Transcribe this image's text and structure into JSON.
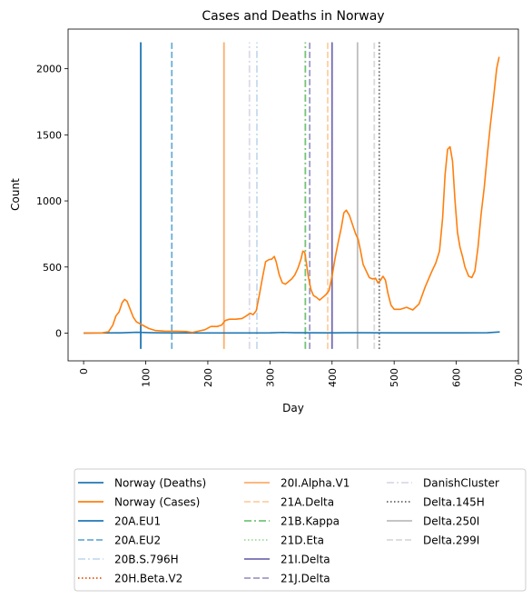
{
  "chart_data": {
    "type": "line",
    "title": "Cases and Deaths in Norway",
    "xlabel": "Day",
    "ylabel": "Count",
    "xlim": [
      -25,
      700
    ],
    "ylim": [
      -210,
      2300
    ],
    "x_ticks": [
      0,
      100,
      200,
      300,
      400,
      500,
      600,
      700
    ],
    "y_ticks": [
      0,
      500,
      1000,
      1500,
      2000
    ],
    "grid": false,
    "legend_position": "bottom",
    "series": [
      {
        "name": "Norway (Deaths)",
        "color": "#1f77b4",
        "points": [
          [
            0,
            0
          ],
          [
            60,
            2
          ],
          [
            85,
            6
          ],
          [
            110,
            3
          ],
          [
            150,
            1
          ],
          [
            250,
            1
          ],
          [
            300,
            2
          ],
          [
            320,
            5
          ],
          [
            340,
            3
          ],
          [
            400,
            2
          ],
          [
            450,
            3
          ],
          [
            500,
            2
          ],
          [
            600,
            2
          ],
          [
            650,
            3
          ],
          [
            670,
            9
          ]
        ]
      },
      {
        "name": "Norway (Cases)",
        "color": "#ff7f0e",
        "points": [
          [
            0,
            0
          ],
          [
            30,
            2
          ],
          [
            40,
            10
          ],
          [
            47,
            60
          ],
          [
            52,
            130
          ],
          [
            57,
            160
          ],
          [
            62,
            230
          ],
          [
            66,
            255
          ],
          [
            70,
            240
          ],
          [
            75,
            180
          ],
          [
            80,
            120
          ],
          [
            85,
            85
          ],
          [
            95,
            60
          ],
          [
            105,
            35
          ],
          [
            115,
            20
          ],
          [
            130,
            15
          ],
          [
            150,
            14
          ],
          [
            165,
            12
          ],
          [
            175,
            5
          ],
          [
            185,
            15
          ],
          [
            195,
            25
          ],
          [
            205,
            50
          ],
          [
            215,
            50
          ],
          [
            222,
            60
          ],
          [
            228,
            95
          ],
          [
            235,
            105
          ],
          [
            245,
            105
          ],
          [
            255,
            110
          ],
          [
            262,
            130
          ],
          [
            268,
            150
          ],
          [
            273,
            140
          ],
          [
            278,
            170
          ],
          [
            283,
            290
          ],
          [
            288,
            420
          ],
          [
            293,
            540
          ],
          [
            298,
            555
          ],
          [
            303,
            560
          ],
          [
            307,
            580
          ],
          [
            310,
            540
          ],
          [
            315,
            440
          ],
          [
            320,
            380
          ],
          [
            325,
            370
          ],
          [
            330,
            390
          ],
          [
            335,
            410
          ],
          [
            340,
            440
          ],
          [
            345,
            490
          ],
          [
            350,
            560
          ],
          [
            353,
            620
          ],
          [
            356,
            610
          ],
          [
            359,
            520
          ],
          [
            362,
            420
          ],
          [
            366,
            330
          ],
          [
            370,
            285
          ],
          [
            375,
            270
          ],
          [
            380,
            250
          ],
          [
            385,
            270
          ],
          [
            390,
            290
          ],
          [
            395,
            320
          ],
          [
            400,
            430
          ],
          [
            405,
            570
          ],
          [
            410,
            690
          ],
          [
            415,
            800
          ],
          [
            419,
            910
          ],
          [
            423,
            930
          ],
          [
            428,
            890
          ],
          [
            433,
            820
          ],
          [
            438,
            750
          ],
          [
            442,
            710
          ],
          [
            446,
            620
          ],
          [
            450,
            520
          ],
          [
            455,
            470
          ],
          [
            460,
            420
          ],
          [
            465,
            410
          ],
          [
            470,
            415
          ],
          [
            474,
            380
          ],
          [
            478,
            400
          ],
          [
            482,
            430
          ],
          [
            486,
            400
          ],
          [
            490,
            300
          ],
          [
            495,
            210
          ],
          [
            500,
            180
          ],
          [
            510,
            180
          ],
          [
            520,
            195
          ],
          [
            530,
            175
          ],
          [
            540,
            220
          ],
          [
            550,
            350
          ],
          [
            560,
            460
          ],
          [
            567,
            530
          ],
          [
            573,
            620
          ],
          [
            578,
            870
          ],
          [
            582,
            1200
          ],
          [
            586,
            1390
          ],
          [
            590,
            1410
          ],
          [
            594,
            1300
          ],
          [
            598,
            1000
          ],
          [
            602,
            760
          ],
          [
            606,
            650
          ],
          [
            610,
            580
          ],
          [
            614,
            500
          ],
          [
            620,
            430
          ],
          [
            625,
            420
          ],
          [
            630,
            470
          ],
          [
            635,
            650
          ],
          [
            640,
            900
          ],
          [
            645,
            1100
          ],
          [
            650,
            1350
          ],
          [
            655,
            1580
          ],
          [
            660,
            1780
          ],
          [
            665,
            2000
          ],
          [
            669,
            2090
          ]
        ]
      }
    ],
    "vlines": [
      {
        "name": "20A.EU1",
        "x": 92,
        "color": "#1f77b4",
        "dash": "solid",
        "width": 1.8
      },
      {
        "name": "20A.EU2",
        "x": 142,
        "color": "#6baed6",
        "dash": "7,3",
        "width": 1.8
      },
      {
        "name": "20B.S.796H",
        "x": 279,
        "color": "#c6dbef",
        "dash": "8,3,2,3",
        "width": 1.8
      },
      {
        "name": "20H.Beta.V2",
        "x": 0,
        "color": "#e6550d",
        "dash": "1.5,2.5",
        "width": 1.8,
        "visible_line": false
      },
      {
        "name": "20I.Alpha.V1",
        "x": 226,
        "color": "#fdae6b",
        "dash": "solid",
        "width": 1.8
      },
      {
        "name": "21A.Delta",
        "x": 393,
        "color": "#fdd0a2",
        "dash": "7,3",
        "width": 1.8
      },
      {
        "name": "21B.Kappa",
        "x": 357,
        "color": "#74c476",
        "dash": "8,3,2,3",
        "width": 1.8
      },
      {
        "name": "21D.Eta",
        "x": 0,
        "color": "#a1d99b",
        "dash": "1.5,2.5",
        "width": 1.8,
        "visible_line": false
      },
      {
        "name": "21I.Delta",
        "x": 400,
        "color": "#756bb1",
        "dash": "solid",
        "width": 1.8
      },
      {
        "name": "21J.Delta",
        "x": 364,
        "color": "#9e9ac8",
        "dash": "7,3",
        "width": 1.8
      },
      {
        "name": "DanishCluster",
        "x": 267,
        "color": "#dadaeb",
        "dash": "8,3,2,3",
        "width": 1.8
      },
      {
        "name": "Delta.145H",
        "x": 476,
        "color": "#636363",
        "dash": "1.5,2.5",
        "width": 1.8
      },
      {
        "name": "Delta.250I",
        "x": 441,
        "color": "#bdbdbd",
        "dash": "solid",
        "width": 1.8
      },
      {
        "name": "Delta.299I",
        "x": 468,
        "color": "#d9d9d9",
        "dash": "7,3",
        "width": 1.8
      }
    ],
    "vline_range": [
      -120,
      2200
    ]
  }
}
